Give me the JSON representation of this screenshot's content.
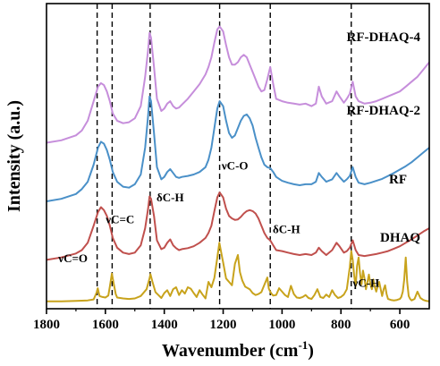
{
  "chart_data": {
    "type": "line",
    "xlabel": "Wavenumber (cm",
    "xlabel_sup": "-1",
    "xlabel_tail": ")",
    "ylabel": "Intensity (a.u.)",
    "xlim": [
      1800,
      500
    ],
    "x_reversed": true,
    "x_ticks": [
      1800,
      1600,
      1400,
      1200,
      1000,
      800,
      600
    ],
    "y_ticks_shown": false,
    "grid": false,
    "legend": "none",
    "series_labels_inline": true,
    "reference_lines_x": [
      1628,
      1577,
      1448,
      1212,
      1040,
      765
    ],
    "annotations": [
      {
        "text": "νC=O",
        "x": 1710,
        "y": 0.95
      },
      {
        "text": "νC=C",
        "x": 1550,
        "y": 1.75
      },
      {
        "text": "δC-H",
        "x": 1380,
        "y": 2.2
      },
      {
        "text": "νC-O",
        "x": 1160,
        "y": 2.85
      },
      {
        "text": "δC-H",
        "x": 985,
        "y": 1.55
      },
      {
        "text": "γC-H",
        "x": 715,
        "y": 0.45
      }
    ],
    "series": [
      {
        "name": "DHAQ",
        "color": "#C8A31C",
        "x": [
          1800,
          1750,
          1700,
          1660,
          1640,
          1630,
          1626,
          1620,
          1610,
          1600,
          1590,
          1585,
          1578,
          1572,
          1565,
          1560,
          1540,
          1520,
          1500,
          1480,
          1460,
          1450,
          1447,
          1440,
          1430,
          1420,
          1410,
          1400,
          1390,
          1380,
          1370,
          1360,
          1350,
          1340,
          1330,
          1320,
          1310,
          1300,
          1290,
          1280,
          1270,
          1260,
          1250,
          1240,
          1230,
          1220,
          1213,
          1205,
          1200,
          1190,
          1180,
          1170,
          1160,
          1150,
          1143,
          1135,
          1125,
          1110,
          1100,
          1090,
          1080,
          1070,
          1060,
          1050,
          1045,
          1040,
          1035,
          1030,
          1020,
          1010,
          1000,
          990,
          980,
          970,
          960,
          950,
          940,
          930,
          920,
          910,
          900,
          890,
          880,
          870,
          860,
          850,
          840,
          830,
          820,
          810,
          800,
          790,
          780,
          770,
          765,
          760,
          755,
          750,
          745,
          740,
          735,
          730,
          725,
          720,
          715,
          710,
          705,
          700,
          695,
          690,
          685,
          680,
          675,
          670,
          665,
          660,
          655,
          650,
          645,
          640,
          630,
          620,
          610,
          600,
          595,
          590,
          585,
          580,
          575,
          570,
          565,
          560,
          550,
          540,
          530,
          520,
          510,
          500
        ],
        "y": [
          0.15,
          0.15,
          0.16,
          0.17,
          0.19,
          0.33,
          0.42,
          0.26,
          0.24,
          0.23,
          0.27,
          0.45,
          0.72,
          0.52,
          0.3,
          0.23,
          0.21,
          0.2,
          0.21,
          0.26,
          0.4,
          0.62,
          0.71,
          0.55,
          0.34,
          0.28,
          0.22,
          0.32,
          0.38,
          0.26,
          0.4,
          0.44,
          0.28,
          0.38,
          0.31,
          0.44,
          0.41,
          0.32,
          0.24,
          0.38,
          0.29,
          0.21,
          0.55,
          0.44,
          0.63,
          1.05,
          1.35,
          1.1,
          0.95,
          0.62,
          0.55,
          0.48,
          0.92,
          1.1,
          0.75,
          0.58,
          0.45,
          0.4,
          0.32,
          0.28,
          0.3,
          0.34,
          0.49,
          0.64,
          0.41,
          0.35,
          0.3,
          0.27,
          0.28,
          0.42,
          0.35,
          0.28,
          0.24,
          0.47,
          0.3,
          0.23,
          0.22,
          0.24,
          0.28,
          0.22,
          0.2,
          0.28,
          0.4,
          0.24,
          0.22,
          0.29,
          0.24,
          0.38,
          0.28,
          0.22,
          0.24,
          0.29,
          0.4,
          0.85,
          1.18,
          1.0,
          0.68,
          0.46,
          0.88,
          1.05,
          0.72,
          0.5,
          0.78,
          0.62,
          0.4,
          0.55,
          0.7,
          0.5,
          0.4,
          0.6,
          0.45,
          0.35,
          0.46,
          0.55,
          0.4,
          0.26,
          0.4,
          0.48,
          0.3,
          0.2,
          0.18,
          0.17,
          0.18,
          0.2,
          0.24,
          0.35,
          0.6,
          1.05,
          0.55,
          0.26,
          0.2,
          0.17,
          0.2,
          0.35,
          0.22,
          0.18,
          0.16,
          0.15
        ]
      },
      {
        "name": "RF",
        "color": "#C0504D",
        "x": [
          1800,
          1750,
          1700,
          1680,
          1660,
          1640,
          1625,
          1615,
          1605,
          1595,
          1585,
          1575,
          1560,
          1540,
          1520,
          1500,
          1480,
          1465,
          1455,
          1450,
          1445,
          1435,
          1425,
          1410,
          1400,
          1390,
          1380,
          1370,
          1360,
          1350,
          1340,
          1320,
          1300,
          1280,
          1260,
          1250,
          1240,
          1230,
          1220,
          1212,
          1200,
          1190,
          1180,
          1170,
          1160,
          1150,
          1140,
          1130,
          1120,
          1110,
          1100,
          1090,
          1080,
          1070,
          1060,
          1050,
          1040,
          1030,
          1020,
          1000,
          980,
          960,
          940,
          920,
          900,
          885,
          875,
          865,
          850,
          830,
          815,
          805,
          790,
          780,
          770,
          760,
          750,
          740,
          720,
          700,
          680,
          660,
          640,
          620,
          600,
          580,
          560,
          540,
          520,
          500
        ],
        "y": [
          1.0,
          1.05,
          1.13,
          1.2,
          1.35,
          1.7,
          1.98,
          2.08,
          2.02,
          1.9,
          1.7,
          1.45,
          1.25,
          1.15,
          1.12,
          1.15,
          1.3,
          1.65,
          2.05,
          2.3,
          2.25,
          1.9,
          1.4,
          1.22,
          1.25,
          1.35,
          1.42,
          1.3,
          1.24,
          1.2,
          1.22,
          1.24,
          1.28,
          1.35,
          1.45,
          1.55,
          1.7,
          2.0,
          2.28,
          2.38,
          2.28,
          2.05,
          1.9,
          1.85,
          1.82,
          1.83,
          1.88,
          1.95,
          2.0,
          2.02,
          2.0,
          1.95,
          1.85,
          1.7,
          1.55,
          1.45,
          1.4,
          1.3,
          1.2,
          1.18,
          1.15,
          1.12,
          1.1,
          1.12,
          1.1,
          1.15,
          1.25,
          1.18,
          1.1,
          1.2,
          1.35,
          1.28,
          1.15,
          1.18,
          1.25,
          1.4,
          1.2,
          1.1,
          1.08,
          1.1,
          1.12,
          1.15,
          1.18,
          1.23,
          1.28,
          1.35,
          1.42,
          1.5,
          1.58,
          1.65
        ]
      },
      {
        "name": "RF-DHAQ-2",
        "color": "#4A90C8",
        "x": [
          1800,
          1750,
          1700,
          1680,
          1660,
          1640,
          1625,
          1615,
          1605,
          1595,
          1585,
          1575,
          1560,
          1540,
          1520,
          1500,
          1480,
          1465,
          1455,
          1450,
          1445,
          1435,
          1425,
          1410,
          1400,
          1390,
          1380,
          1370,
          1360,
          1350,
          1340,
          1320,
          1300,
          1280,
          1260,
          1250,
          1240,
          1230,
          1220,
          1212,
          1200,
          1190,
          1180,
          1170,
          1160,
          1150,
          1140,
          1130,
          1120,
          1110,
          1100,
          1090,
          1080,
          1070,
          1060,
          1050,
          1040,
          1030,
          1020,
          1000,
          980,
          960,
          940,
          920,
          900,
          885,
          875,
          865,
          850,
          830,
          815,
          805,
          790,
          780,
          770,
          760,
          750,
          740,
          720,
          700,
          680,
          660,
          640,
          620,
          600,
          580,
          560,
          540,
          520,
          500
        ],
        "y": [
          2.2,
          2.25,
          2.35,
          2.45,
          2.6,
          2.95,
          3.3,
          3.42,
          3.38,
          3.25,
          3.05,
          2.8,
          2.6,
          2.5,
          2.48,
          2.55,
          2.75,
          3.3,
          3.95,
          4.35,
          4.25,
          3.6,
          2.9,
          2.65,
          2.7,
          2.8,
          2.86,
          2.78,
          2.7,
          2.68,
          2.7,
          2.72,
          2.75,
          2.8,
          2.9,
          3.05,
          3.3,
          3.7,
          4.1,
          4.25,
          4.15,
          3.85,
          3.6,
          3.5,
          3.55,
          3.7,
          3.85,
          3.95,
          3.98,
          3.9,
          3.75,
          3.5,
          3.3,
          3.1,
          2.95,
          2.9,
          2.88,
          2.8,
          2.7,
          2.62,
          2.58,
          2.55,
          2.53,
          2.55,
          2.55,
          2.6,
          2.78,
          2.7,
          2.6,
          2.65,
          2.78,
          2.7,
          2.6,
          2.65,
          2.72,
          2.9,
          2.7,
          2.58,
          2.55,
          2.58,
          2.62,
          2.66,
          2.72,
          2.78,
          2.85,
          2.92,
          3.0,
          3.1,
          3.2,
          3.3
        ]
      },
      {
        "name": "RF-DHAQ-4",
        "color": "#C68EDB",
        "x": [
          1800,
          1750,
          1700,
          1680,
          1660,
          1640,
          1625,
          1615,
          1605,
          1595,
          1585,
          1575,
          1560,
          1540,
          1520,
          1500,
          1480,
          1465,
          1455,
          1450,
          1445,
          1435,
          1425,
          1410,
          1400,
          1390,
          1380,
          1370,
          1360,
          1350,
          1340,
          1320,
          1300,
          1280,
          1260,
          1250,
          1240,
          1230,
          1220,
          1212,
          1200,
          1190,
          1180,
          1170,
          1160,
          1150,
          1140,
          1130,
          1120,
          1110,
          1100,
          1090,
          1080,
          1070,
          1060,
          1050,
          1040,
          1030,
          1020,
          1000,
          980,
          960,
          940,
          920,
          900,
          885,
          875,
          865,
          850,
          830,
          815,
          805,
          790,
          780,
          770,
          760,
          750,
          740,
          720,
          700,
          680,
          660,
          640,
          620,
          600,
          580,
          560,
          540,
          520,
          500
        ],
        "y": [
          3.4,
          3.45,
          3.55,
          3.65,
          3.85,
          4.25,
          4.55,
          4.62,
          4.58,
          4.45,
          4.25,
          4.0,
          3.85,
          3.8,
          3.82,
          3.9,
          4.15,
          4.75,
          5.3,
          5.65,
          5.55,
          4.95,
          4.3,
          4.05,
          4.1,
          4.2,
          4.25,
          4.15,
          4.1,
          4.12,
          4.18,
          4.3,
          4.45,
          4.6,
          4.8,
          4.95,
          5.15,
          5.45,
          5.72,
          5.78,
          5.68,
          5.4,
          5.15,
          5.0,
          5.0,
          5.05,
          5.15,
          5.2,
          5.15,
          5.0,
          4.85,
          4.7,
          4.55,
          4.45,
          4.48,
          4.7,
          4.95,
          4.6,
          4.3,
          4.25,
          4.22,
          4.2,
          4.18,
          4.2,
          4.15,
          4.2,
          4.55,
          4.35,
          4.2,
          4.25,
          4.45,
          4.35,
          4.22,
          4.3,
          4.4,
          4.65,
          4.35,
          4.25,
          4.2,
          4.22,
          4.25,
          4.3,
          4.35,
          4.4,
          4.45,
          4.55,
          4.65,
          4.75,
          4.9,
          5.05
        ]
      }
    ]
  }
}
